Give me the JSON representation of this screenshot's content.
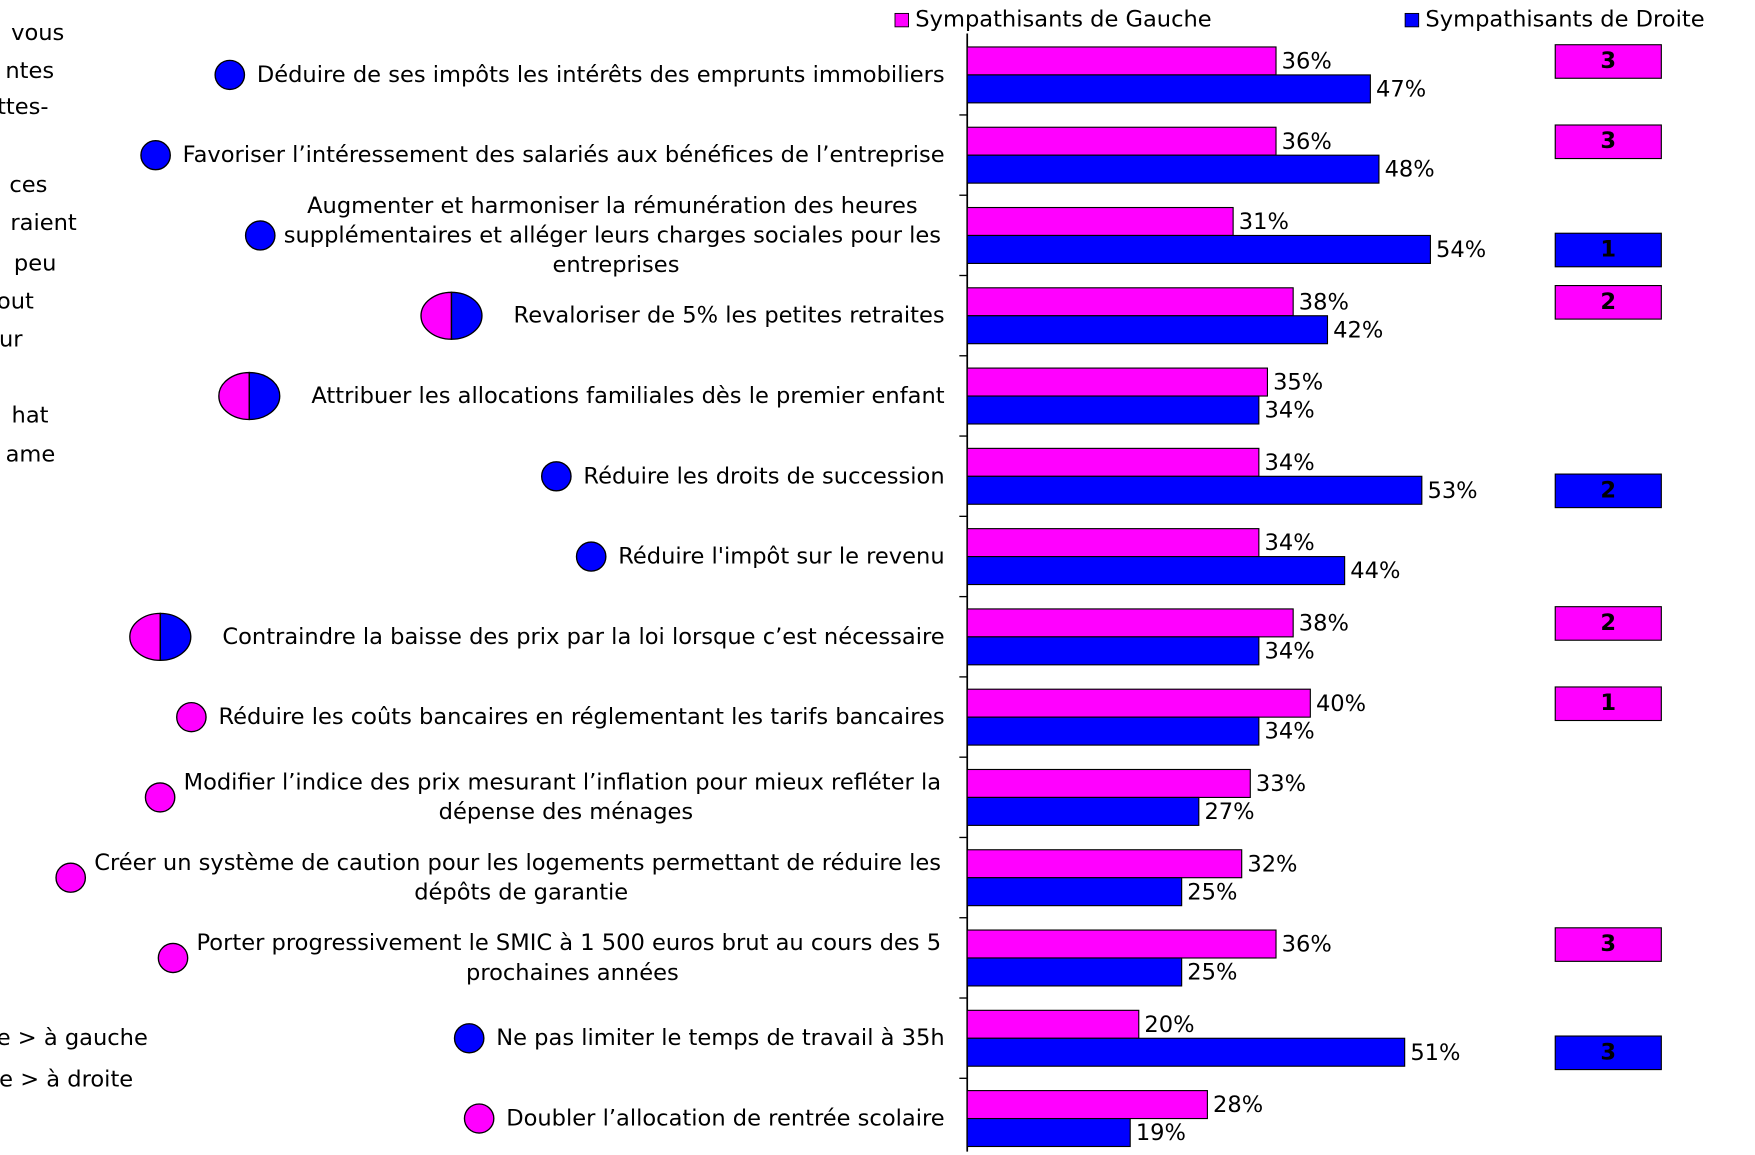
{
  "chart_data": {
    "type": "bar",
    "orientation": "horizontal",
    "legend_position": "top",
    "categories": [
      "Déduire de ses impôts les intérêts des emprunts immobiliers",
      "Favoriser l’intéressement des salariés aux bénéfices de l’entreprise",
      "Augmenter et harmoniser la rémunération des heures supplémentaires et alléger leurs charges sociales pour les entreprises",
      "Revaloriser de 5% les petites retraites",
      "Attribuer les allocations familiales dès le premier enfant",
      "Réduire les droits de succession",
      "Réduire l'impôt sur le revenu",
      "Contraindre la baisse des prix par la loi lorsque c’est nécessaire",
      "Réduire les coûts bancaires en réglementant les tarifs bancaires",
      "Modifier l’indice des prix mesurant l’inflation pour mieux refléter la dépense des ménages",
      "Créer un système de caution pour les logements permettant de réduire les dépôts de garantie",
      "Porter progressivement le SMIC à 1 500 euros brut au cours des 5 prochaines années",
      "Ne pas limiter le temps de travail à 35h",
      "Doubler l’allocation de rentrée scolaire"
    ],
    "series": [
      {
        "name": "Sympathisants de Gauche",
        "color": "#ff00ff",
        "rank_label_color": "#400030",
        "values": [
          36,
          36,
          31,
          38,
          35,
          34,
          34,
          38,
          40,
          33,
          32,
          36,
          20,
          28
        ],
        "value_labels": [
          "36%",
          "36%",
          "31%",
          "38%",
          "35%",
          "34%",
          "34%",
          "38%",
          "40%",
          "33%",
          "32%",
          "36%",
          "20%",
          "28%"
        ],
        "ranks": [
          3,
          3,
          null,
          2,
          null,
          null,
          null,
          2,
          1,
          null,
          null,
          3,
          null,
          null
        ]
      },
      {
        "name": "Sympathisants de Droite",
        "color": "#0000ff",
        "rank_label_color": "#ffffff",
        "values": [
          47,
          48,
          54,
          42,
          34,
          53,
          44,
          34,
          34,
          27,
          25,
          25,
          51,
          19
        ],
        "value_labels": [
          "47%",
          "48%",
          "54%",
          "42%",
          "34%",
          "53%",
          "44%",
          "34%",
          "34%",
          "27%",
          "25%",
          "25%",
          "51%",
          "19%"
        ],
        "ranks": [
          null,
          null,
          1,
          null,
          null,
          2,
          null,
          null,
          null,
          null,
          null,
          null,
          3,
          null
        ]
      }
    ],
    "marker_colors": [
      [
        "#0000ff"
      ],
      [
        "#0000ff"
      ],
      [
        "#0000ff"
      ],
      [
        "#ff00ff",
        "#0000ff"
      ],
      [
        "#ff00ff",
        "#0000ff"
      ],
      [
        "#0000ff"
      ],
      [
        "#0000ff"
      ],
      [
        "#ff00ff",
        "#0000ff"
      ],
      [
        "#ff00ff"
      ],
      [
        "#ff00ff"
      ],
      [
        "#ff00ff"
      ],
      [
        "#ff00ff"
      ],
      [
        "#0000ff"
      ],
      [
        "#ff00ff"
      ]
    ],
    "xlim": [
      0,
      100
    ],
    "side_text": [
      "vous",
      "ntes",
      "ttes-",
      "ces",
      "raient",
      "peu",
      "out",
      "ur",
      "hat",
      "ame"
    ],
    "footnotes": [
      "ue > à gauche",
      "ue > à droite"
    ]
  }
}
